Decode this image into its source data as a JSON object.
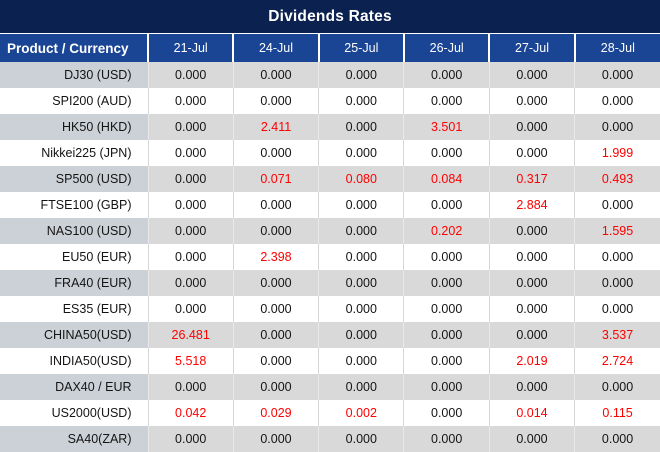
{
  "title": "Dividends Rates",
  "colors": {
    "title_bg": "#0b2150",
    "header_bg": "#1a4494",
    "stripe_prod": "#ccd1d7",
    "stripe_val": "#d9d9d9",
    "highlight": "#ff0000",
    "header_text": "#ffffff",
    "body_text": "#141414"
  },
  "chart_data": {
    "type": "table",
    "title": "Dividends Rates",
    "columns": [
      "Product / Currency",
      "21-Jul",
      "24-Jul",
      "25-Jul",
      "26-Jul",
      "27-Jul",
      "28-Jul"
    ],
    "rows": [
      {
        "product": "DJ30 (USD)",
        "values": [
          {
            "value": "0.000",
            "highlight": false
          },
          {
            "value": "0.000",
            "highlight": false
          },
          {
            "value": "0.000",
            "highlight": false
          },
          {
            "value": "0.000",
            "highlight": false
          },
          {
            "value": "0.000",
            "highlight": false
          },
          {
            "value": "0.000",
            "highlight": false
          }
        ]
      },
      {
        "product": "SPI200 (AUD)",
        "values": [
          {
            "value": "0.000",
            "highlight": false
          },
          {
            "value": "0.000",
            "highlight": false
          },
          {
            "value": "0.000",
            "highlight": false
          },
          {
            "value": "0.000",
            "highlight": false
          },
          {
            "value": "0.000",
            "highlight": false
          },
          {
            "value": "0.000",
            "highlight": false
          }
        ]
      },
      {
        "product": "HK50 (HKD)",
        "values": [
          {
            "value": "0.000",
            "highlight": false
          },
          {
            "value": "2.411",
            "highlight": true
          },
          {
            "value": "0.000",
            "highlight": false
          },
          {
            "value": "3.501",
            "highlight": true
          },
          {
            "value": "0.000",
            "highlight": false
          },
          {
            "value": "0.000",
            "highlight": false
          }
        ]
      },
      {
        "product": "Nikkei225 (JPN)",
        "values": [
          {
            "value": "0.000",
            "highlight": false
          },
          {
            "value": "0.000",
            "highlight": false
          },
          {
            "value": "0.000",
            "highlight": false
          },
          {
            "value": "0.000",
            "highlight": false
          },
          {
            "value": "0.000",
            "highlight": false
          },
          {
            "value": "1.999",
            "highlight": true
          }
        ]
      },
      {
        "product": "SP500 (USD)",
        "values": [
          {
            "value": "0.000",
            "highlight": false
          },
          {
            "value": "0.071",
            "highlight": true
          },
          {
            "value": "0.080",
            "highlight": true
          },
          {
            "value": "0.084",
            "highlight": true
          },
          {
            "value": "0.317",
            "highlight": true
          },
          {
            "value": "0.493",
            "highlight": true
          }
        ]
      },
      {
        "product": "FTSE100 (GBP)",
        "values": [
          {
            "value": "0.000",
            "highlight": false
          },
          {
            "value": "0.000",
            "highlight": false
          },
          {
            "value": "0.000",
            "highlight": false
          },
          {
            "value": "0.000",
            "highlight": false
          },
          {
            "value": "2.884",
            "highlight": true
          },
          {
            "value": "0.000",
            "highlight": false
          }
        ]
      },
      {
        "product": "NAS100 (USD)",
        "values": [
          {
            "value": "0.000",
            "highlight": false
          },
          {
            "value": "0.000",
            "highlight": false
          },
          {
            "value": "0.000",
            "highlight": false
          },
          {
            "value": "0.202",
            "highlight": true
          },
          {
            "value": "0.000",
            "highlight": false
          },
          {
            "value": "1.595",
            "highlight": true
          }
        ]
      },
      {
        "product": "EU50 (EUR)",
        "values": [
          {
            "value": "0.000",
            "highlight": false
          },
          {
            "value": "2.398",
            "highlight": true
          },
          {
            "value": "0.000",
            "highlight": false
          },
          {
            "value": "0.000",
            "highlight": false
          },
          {
            "value": "0.000",
            "highlight": false
          },
          {
            "value": "0.000",
            "highlight": false
          }
        ]
      },
      {
        "product": "FRA40 (EUR)",
        "values": [
          {
            "value": "0.000",
            "highlight": false
          },
          {
            "value": "0.000",
            "highlight": false
          },
          {
            "value": "0.000",
            "highlight": false
          },
          {
            "value": "0.000",
            "highlight": false
          },
          {
            "value": "0.000",
            "highlight": false
          },
          {
            "value": "0.000",
            "highlight": false
          }
        ]
      },
      {
        "product": "ES35 (EUR)",
        "values": [
          {
            "value": "0.000",
            "highlight": false
          },
          {
            "value": "0.000",
            "highlight": false
          },
          {
            "value": "0.000",
            "highlight": false
          },
          {
            "value": "0.000",
            "highlight": false
          },
          {
            "value": "0.000",
            "highlight": false
          },
          {
            "value": "0.000",
            "highlight": false
          }
        ]
      },
      {
        "product": "CHINA50(USD)",
        "values": [
          {
            "value": "26.481",
            "highlight": true
          },
          {
            "value": "0.000",
            "highlight": false
          },
          {
            "value": "0.000",
            "highlight": false
          },
          {
            "value": "0.000",
            "highlight": false
          },
          {
            "value": "0.000",
            "highlight": false
          },
          {
            "value": "3.537",
            "highlight": true
          }
        ]
      },
      {
        "product": "INDIA50(USD)",
        "values": [
          {
            "value": "5.518",
            "highlight": true
          },
          {
            "value": "0.000",
            "highlight": false
          },
          {
            "value": "0.000",
            "highlight": false
          },
          {
            "value": "0.000",
            "highlight": false
          },
          {
            "value": "2.019",
            "highlight": true
          },
          {
            "value": "2.724",
            "highlight": true
          }
        ]
      },
      {
        "product": "DAX40 / EUR",
        "values": [
          {
            "value": "0.000",
            "highlight": false
          },
          {
            "value": "0.000",
            "highlight": false
          },
          {
            "value": "0.000",
            "highlight": false
          },
          {
            "value": "0.000",
            "highlight": false
          },
          {
            "value": "0.000",
            "highlight": false
          },
          {
            "value": "0.000",
            "highlight": false
          }
        ]
      },
      {
        "product": "US2000(USD)",
        "values": [
          {
            "value": "0.042",
            "highlight": true
          },
          {
            "value": "0.029",
            "highlight": true
          },
          {
            "value": "0.002",
            "highlight": true
          },
          {
            "value": "0.000",
            "highlight": false
          },
          {
            "value": "0.014",
            "highlight": true
          },
          {
            "value": "0.115",
            "highlight": true
          }
        ]
      },
      {
        "product": "SA40(ZAR)",
        "values": [
          {
            "value": "0.000",
            "highlight": false
          },
          {
            "value": "0.000",
            "highlight": false
          },
          {
            "value": "0.000",
            "highlight": false
          },
          {
            "value": "0.000",
            "highlight": false
          },
          {
            "value": "0.000",
            "highlight": false
          },
          {
            "value": "0.000",
            "highlight": false
          }
        ]
      }
    ]
  }
}
